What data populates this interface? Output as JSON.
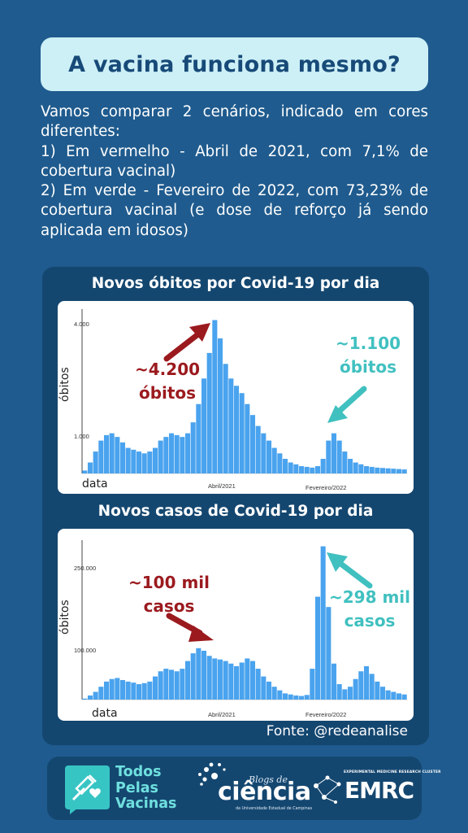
{
  "header": {
    "title": "A vacina funciona mesmo?"
  },
  "intro": {
    "paragraphs": [
      "Vamos comparar 2 cenários, indicado em cores diferentes:",
      "1) Em vermelho - Abril de 2021, com 7,1% de cobertura vacinal)",
      "2) Em verde - Fevereiro de 2022, com 73,23% de cobertura vacinal (e dose de reforço já sendo aplicada em idosos)"
    ]
  },
  "colors": {
    "background": "#1f5b8e",
    "panel": "#144770",
    "title_box": "#cdf0f7",
    "bar": "#4aa3ee",
    "red": "#9b1a1e",
    "teal": "#41c0c0"
  },
  "charts": {
    "deaths": {
      "title": "Novos óbitos por Covid-19 por dia",
      "ylabel": "óbitos",
      "xlabel": "data",
      "ytick_top": "4.000",
      "ytick_low": "1.000",
      "xmark_a": "Abril/2021",
      "xmark_b": "Fevereiro/2022",
      "annot_red": [
        "~4.200",
        "óbitos"
      ],
      "annot_teal": [
        "~1.100",
        "óbitos"
      ]
    },
    "cases": {
      "title": "Novos casos de Covid-19 por dia",
      "ylabel": "óbitos",
      "xlabel": "data",
      "ytick_top": "250.000",
      "ytick_low": "100.000",
      "xmark_a": "Abril/2021",
      "xmark_b": "Fevereiro/2022",
      "annot_red": [
        "~100 mil",
        "casos"
      ],
      "annot_teal": [
        "~298 mil",
        "casos"
      ]
    }
  },
  "chart_data": [
    {
      "type": "bar",
      "title": "Novos óbitos por Covid-19 por dia",
      "xlabel": "data",
      "ylabel": "óbitos",
      "ylim": [
        0,
        4500
      ],
      "series": [
        {
          "values": [
            80,
            300,
            600,
            900,
            1050,
            1100,
            1000,
            850,
            700,
            650,
            600,
            550,
            600,
            700,
            900,
            1000,
            1100,
            1050,
            1000,
            1100,
            1400,
            1900,
            2600,
            3300,
            4200,
            3700,
            3000,
            2600,
            2400,
            2200,
            1900,
            1600,
            1300,
            1100,
            900,
            700,
            550,
            400,
            300,
            250,
            200,
            180,
            160,
            200,
            400,
            900,
            1100,
            900,
            600,
            400,
            300,
            250,
            200,
            180,
            160,
            150,
            140,
            130,
            120,
            110
          ]
        }
      ],
      "annotations": [
        "~4.200 óbitos",
        "~1.100 óbitos"
      ]
    },
    {
      "type": "bar",
      "title": "Novos casos de Covid-19 por dia",
      "xlabel": "data",
      "ylabel": "óbitos",
      "ylim": [
        0,
        310000
      ],
      "series": [
        {
          "values": [
            2000,
            8000,
            15000,
            25000,
            35000,
            40000,
            42000,
            38000,
            35000,
            33000,
            30000,
            32000,
            35000,
            45000,
            55000,
            60000,
            58000,
            55000,
            60000,
            75000,
            90000,
            100000,
            95000,
            85000,
            80000,
            78000,
            75000,
            70000,
            65000,
            72000,
            80000,
            75000,
            60000,
            45000,
            35000,
            25000,
            18000,
            12000,
            10000,
            8000,
            7000,
            9000,
            60000,
            200000,
            298000,
            180000,
            70000,
            30000,
            20000,
            25000,
            40000,
            55000,
            65000,
            50000,
            35000,
            25000,
            18000,
            15000,
            12000,
            10000
          ]
        }
      ],
      "annotations": [
        "~100 mil casos",
        "~298 mil casos"
      ]
    }
  ],
  "source": "Fonte: @redeanalise",
  "logos": {
    "todos_pelas_vacinas": [
      "Todos",
      "Pelas",
      "Vacinas"
    ],
    "blogs_de": "Blogs de",
    "ciencia": "ciência",
    "ciencia_sub": "da Universidade Estadual de Campinas",
    "emrc_tag": "EXPERIMENTAL MEDICINE RESEARCH CLUSTER",
    "emrc": "EMRC"
  }
}
